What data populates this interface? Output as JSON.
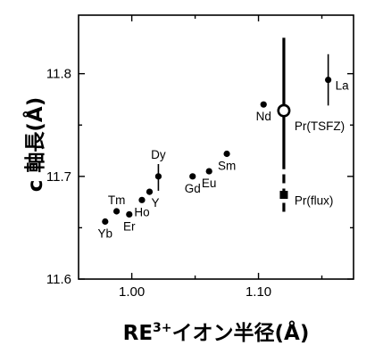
{
  "chart_data": {
    "type": "scatter",
    "xlabel": {
      "base": "RE",
      "superscript": "3+",
      "rest": "イオン半径(Å)"
    },
    "ylabel": "c 軸長(Å)",
    "xlim": [
      0.958,
      1.175
    ],
    "ylim": [
      11.6,
      11.857
    ],
    "xticks": [
      {
        "value": 1.0,
        "label": "1.00"
      },
      {
        "value": 1.1,
        "label": "1.10"
      }
    ],
    "xticks_minor": [
      1.05,
      1.15
    ],
    "yticks": [
      {
        "value": 11.6,
        "label": "11.6"
      },
      {
        "value": 11.7,
        "label": "11.7"
      },
      {
        "value": 11.8,
        "label": "11.8"
      }
    ],
    "yticks_minor": [
      11.65,
      11.75
    ],
    "grid": false,
    "points": [
      {
        "label": "Yb",
        "x": 0.979,
        "y": 11.656,
        "marker": "filled-circle",
        "label_position": "below"
      },
      {
        "label": "Tm",
        "x": 0.988,
        "y": 11.666,
        "marker": "filled-circle",
        "label_position": "above"
      },
      {
        "label": "Er",
        "x": 0.998,
        "y": 11.663,
        "marker": "filled-circle",
        "label_position": "below"
      },
      {
        "label": "Ho",
        "x": 1.008,
        "y": 11.677,
        "marker": "filled-circle",
        "label_position": "below"
      },
      {
        "label": "Y",
        "x": 1.014,
        "y": 11.685,
        "marker": "filled-circle",
        "label_position": "below-right"
      },
      {
        "label": "Dy",
        "x": 1.021,
        "y": 11.7,
        "yerr": [
          11.686,
          11.712
        ],
        "marker": "filled-circle",
        "label_position": "above"
      },
      {
        "label": "Gd",
        "x": 1.048,
        "y": 11.7,
        "marker": "filled-circle",
        "label_position": "below"
      },
      {
        "label": "Eu",
        "x": 1.061,
        "y": 11.705,
        "marker": "filled-circle",
        "label_position": "below"
      },
      {
        "label": "Sm",
        "x": 1.075,
        "y": 11.722,
        "marker": "filled-circle",
        "label_position": "below"
      },
      {
        "label": "Nd",
        "x": 1.104,
        "y": 11.77,
        "marker": "filled-circle",
        "label_position": "below"
      },
      {
        "label": "Pr(TSFZ)",
        "x": 1.12,
        "y": 11.764,
        "yerr": [
          11.707,
          11.835
        ],
        "marker": "open-circle",
        "label_position": "lower-right"
      },
      {
        "label": "Pr(flux)",
        "x": 1.12,
        "y": 11.682,
        "yerr": [
          11.664,
          11.702
        ],
        "errbar_style": "dashed",
        "marker": "square",
        "label_position": "right"
      },
      {
        "label": "La",
        "x": 1.155,
        "y": 11.794,
        "yerr": [
          11.769,
          11.819
        ],
        "marker": "filled-circle",
        "label_position": "right"
      }
    ]
  }
}
